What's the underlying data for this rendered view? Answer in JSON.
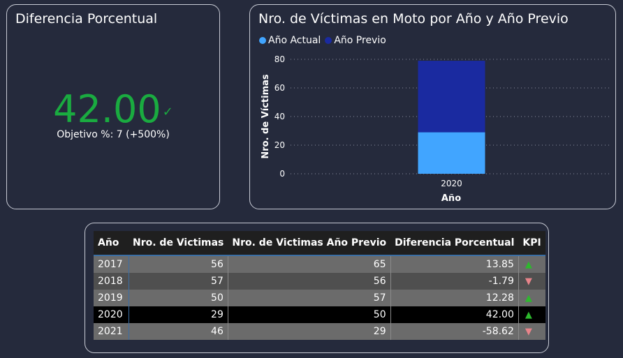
{
  "kpi": {
    "title": "Diferencia Porcentual",
    "value": "42.00",
    "check_icon": "check-icon",
    "goal_text": "Objetivo %: 7 (+500%)",
    "value_color": "#1aab40"
  },
  "chart": {
    "title": "Nro. de Víctimas en Moto por Año y Año Previo",
    "legend": [
      "Año Actual",
      "Año Previo"
    ]
  },
  "chart_data": {
    "type": "bar",
    "stacked": true,
    "title": "Nro. de Víctimas en Moto por Año y Año Previo",
    "xlabel": "Año",
    "ylabel": "Nro. de Víctimas",
    "categories": [
      "2020"
    ],
    "series": [
      {
        "name": "Año Actual",
        "values": [
          29
        ],
        "color": "#41a5ff"
      },
      {
        "name": "Año Previo",
        "values": [
          50
        ],
        "color": "#1a2aa0"
      }
    ],
    "ylim": [
      0,
      80
    ],
    "yticks": [
      "0",
      "20",
      "40",
      "60",
      "80"
    ],
    "grid": true,
    "legend_position": "top-left"
  },
  "table": {
    "headers": [
      "Año",
      "Nro. de Victimas",
      "Nro. de Victimas Año Previo",
      "Diferencia Porcentual",
      "KPI"
    ],
    "rows": [
      {
        "year": "2017",
        "victims": "56",
        "prev": "65",
        "diff": "13.85",
        "kpi": "up"
      },
      {
        "year": "2018",
        "victims": "57",
        "prev": "56",
        "diff": "-1.79",
        "kpi": "down"
      },
      {
        "year": "2019",
        "victims": "50",
        "prev": "57",
        "diff": "12.28",
        "kpi": "up"
      },
      {
        "year": "2020",
        "victims": "29",
        "prev": "50",
        "diff": "42.00",
        "kpi": "up"
      },
      {
        "year": "2021",
        "victims": "46",
        "prev": "29",
        "diff": "-58.62",
        "kpi": "down"
      }
    ],
    "up_color": "#2db82d",
    "down_color": "#e8848a"
  }
}
